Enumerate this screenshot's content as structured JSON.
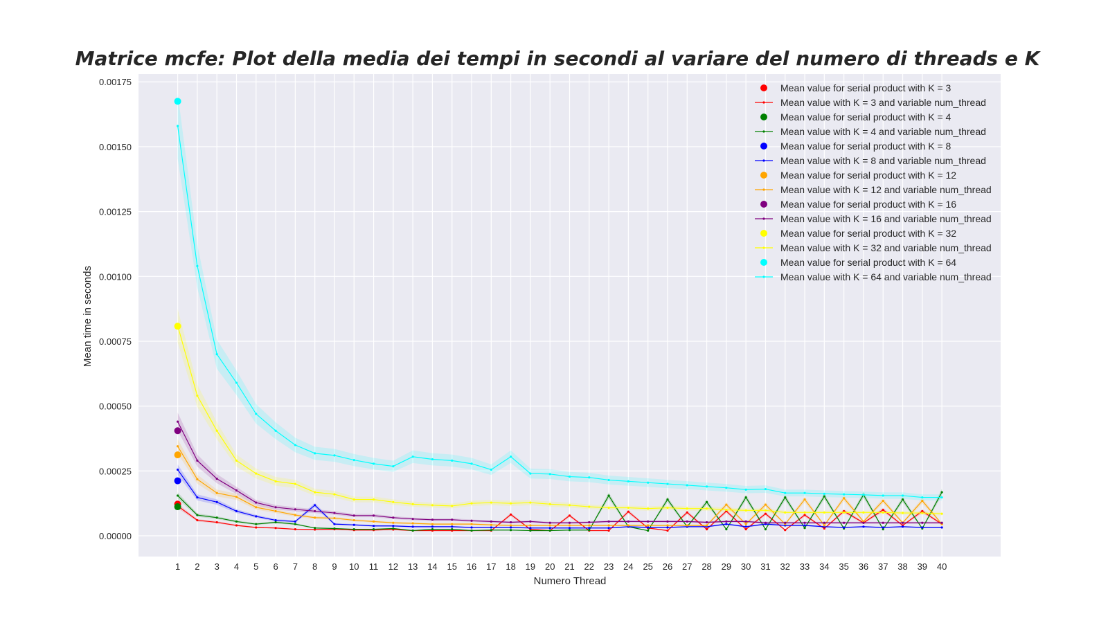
{
  "chart_data": {
    "type": "line",
    "title": "Matrice mcfe: Plot della media dei tempi in secondi al variare del numero di threads e K",
    "xlabel": "Numero Thread",
    "ylabel": "Mean time in seconds",
    "xlim": [
      -1,
      43
    ],
    "ylim": [
      -8e-05,
      0.00178
    ],
    "x": [
      1,
      2,
      3,
      4,
      5,
      6,
      7,
      8,
      9,
      10,
      11,
      12,
      13,
      14,
      15,
      16,
      17,
      18,
      19,
      20,
      21,
      22,
      23,
      24,
      25,
      26,
      27,
      28,
      29,
      30,
      31,
      32,
      33,
      34,
      35,
      36,
      37,
      38,
      39,
      40
    ],
    "x_tick_labels": [
      "1",
      "2",
      "3",
      "4",
      "5",
      "6",
      "7",
      "8",
      "9",
      "10",
      "11",
      "12",
      "13",
      "14",
      "15",
      "16",
      "17",
      "18",
      "19",
      "20",
      "21",
      "22",
      "23",
      "24",
      "25",
      "26",
      "27",
      "28",
      "29",
      "30",
      "31",
      "32",
      "33",
      "34",
      "35",
      "36",
      "37",
      "38",
      "39",
      "40"
    ],
    "y_ticks": [
      0.0,
      0.00025,
      0.0005,
      0.00075,
      0.001,
      0.00125,
      0.0015,
      0.00175
    ],
    "y_tick_labels": [
      "0.00000",
      "0.00025",
      "0.00050",
      "0.00075",
      "0.00100",
      "0.00125",
      "0.00150",
      "0.00175"
    ],
    "grid": true,
    "legend_position": "top-right",
    "background": "#eaeaf2",
    "serial_points": [
      {
        "name": "Mean value for serial product with K = 3",
        "x": 1,
        "y": 0.000122,
        "color": "#ff0000"
      },
      {
        "name": "Mean value for serial product with K = 4",
        "x": 1,
        "y": 0.000112,
        "color": "#008000"
      },
      {
        "name": "Mean value for serial product with K = 8",
        "x": 1,
        "y": 0.000212,
        "color": "#0000ff"
      },
      {
        "name": "Mean value for serial product with K = 12",
        "x": 1,
        "y": 0.000312,
        "color": "#ffa500"
      },
      {
        "name": "Mean value for serial product with K = 16",
        "x": 1,
        "y": 0.000405,
        "color": "#800080"
      },
      {
        "name": "Mean value for serial product with K = 32",
        "x": 1,
        "y": 0.000808,
        "color": "#ffff00"
      },
      {
        "name": "Mean value for serial product with K = 64",
        "x": 1,
        "y": 0.001675,
        "color": "#00ffff"
      }
    ],
    "series": [
      {
        "name": "Mean value with K = 3 and variable num_thread",
        "color": "#ff0000",
        "values": [
          0.000115,
          6e-05,
          5.2e-05,
          4e-05,
          3.2e-05,
          3e-05,
          2.5e-05,
          2.4e-05,
          2.5e-05,
          2.2e-05,
          2.2e-05,
          2.4e-05,
          2e-05,
          2e-05,
          2e-05,
          2e-05,
          2e-05,
          8.2e-05,
          2.5e-05,
          2e-05,
          7.8e-05,
          2e-05,
          2e-05,
          9.3e-05,
          3e-05,
          2e-05,
          9e-05,
          2.5e-05,
          9.5e-05,
          2.5e-05,
          8.5e-05,
          2.2e-05,
          8e-05,
          2.8e-05,
          9.5e-05,
          5e-05,
          0.0001,
          4e-05,
          9.5e-05,
          4.5e-05
        ]
      },
      {
        "name": "Mean value with K = 4 and variable num_thread",
        "color": "#008000",
        "values": [
          0.000155,
          8e-05,
          7e-05,
          5.5e-05,
          4.5e-05,
          5.2e-05,
          4.5e-05,
          3e-05,
          2.8e-05,
          2.5e-05,
          2.5e-05,
          2.8e-05,
          2e-05,
          2.5e-05,
          2.5e-05,
          2e-05,
          2.2e-05,
          2.2e-05,
          2e-05,
          2e-05,
          2.2e-05,
          2.2e-05,
          0.000155,
          3.5e-05,
          2e-05,
          0.00014,
          3.5e-05,
          0.00013,
          2.5e-05,
          0.000148,
          2.5e-05,
          0.000148,
          3e-05,
          0.000152,
          2.8e-05,
          0.000158,
          2.5e-05,
          0.00014,
          2.8e-05,
          0.000168
        ]
      },
      {
        "name": "Mean value with K = 8 and variable num_thread",
        "color": "#0000ff",
        "values": [
          0.000255,
          0.000148,
          0.00013,
          9.5e-05,
          7.5e-05,
          6e-05,
          5.5e-05,
          0.000118,
          4.5e-05,
          4.2e-05,
          3.8e-05,
          3.8e-05,
          3.5e-05,
          3.5e-05,
          3.5e-05,
          3.2e-05,
          3.2e-05,
          3.2e-05,
          3e-05,
          3e-05,
          3e-05,
          3e-05,
          3e-05,
          3.5e-05,
          3.2e-05,
          3.2e-05,
          3.5e-05,
          3.5e-05,
          4.5e-05,
          3.5e-05,
          4.5e-05,
          4e-05,
          4e-05,
          3.5e-05,
          3.2e-05,
          3.5e-05,
          3.2e-05,
          3.5e-05,
          3.2e-05,
          3.2e-05
        ]
      },
      {
        "name": "Mean value with K = 12 and variable num_thread",
        "color": "#ffa500",
        "values": [
          0.000345,
          0.000218,
          0.000165,
          0.00015,
          0.00011,
          9.5e-05,
          8e-05,
          7e-05,
          6.8e-05,
          6e-05,
          5.5e-05,
          5e-05,
          4.8e-05,
          4.5e-05,
          4.5e-05,
          4.5e-05,
          4.2e-05,
          4e-05,
          4e-05,
          4e-05,
          4e-05,
          4e-05,
          4e-05,
          4e-05,
          4e-05,
          4e-05,
          4e-05,
          4e-05,
          0.00012,
          4.5e-05,
          0.00012,
          4.5e-05,
          0.00014,
          4e-05,
          0.000145,
          5.5e-05,
          0.000135,
          5e-05,
          0.000135,
          4.5e-05
        ]
      },
      {
        "name": "Mean value with K = 16 and variable num_thread",
        "color": "#800080",
        "values": [
          0.00044,
          0.00029,
          0.00022,
          0.000175,
          0.000128,
          0.00011,
          0.000102,
          9.5e-05,
          8.8e-05,
          7.8e-05,
          7.8e-05,
          7e-05,
          6.5e-05,
          6.2e-05,
          6.2e-05,
          5.8e-05,
          5.5e-05,
          5.2e-05,
          5.5e-05,
          5e-05,
          5e-05,
          5.2e-05,
          5.5e-05,
          5.5e-05,
          5.5e-05,
          5.5e-05,
          5.5e-05,
          5.2e-05,
          5.5e-05,
          5.5e-05,
          5e-05,
          5e-05,
          5e-05,
          5e-05,
          5e-05,
          5e-05,
          5e-05,
          5e-05,
          5e-05,
          5e-05
        ]
      },
      {
        "name": "Mean value with K = 32 and variable num_thread",
        "color": "#ffff00",
        "values": [
          0.00081,
          0.00054,
          0.000405,
          0.00029,
          0.00024,
          0.00021,
          0.0002,
          0.000168,
          0.00016,
          0.00014,
          0.00014,
          0.00013,
          0.000122,
          0.000118,
          0.000115,
          0.000125,
          0.000128,
          0.000125,
          0.000128,
          0.000122,
          0.000118,
          0.000112,
          0.000108,
          0.000108,
          0.000105,
          0.000108,
          0.000105,
          0.000105,
          0.0001,
          9.8e-05,
          9.8e-05,
          9e-05,
          9e-05,
          9e-05,
          9e-05,
          9e-05,
          9e-05,
          8.8e-05,
          8.8e-05,
          8.5e-05
        ]
      },
      {
        "name": "Mean value with K = 64 and variable num_thread",
        "color": "#00ffff",
        "values": [
          0.00158,
          0.00104,
          0.0007,
          0.00059,
          0.00047,
          0.000405,
          0.00035,
          0.000318,
          0.00031,
          0.000292,
          0.000278,
          0.000268,
          0.000305,
          0.000295,
          0.00029,
          0.000278,
          0.000255,
          0.000305,
          0.00024,
          0.000238,
          0.000228,
          0.000225,
          0.000215,
          0.00021,
          0.000205,
          0.0002,
          0.000195,
          0.00019,
          0.000185,
          0.000178,
          0.00018,
          0.000165,
          0.000165,
          0.000162,
          0.00016,
          0.000158,
          0.000155,
          0.000155,
          0.000148,
          0.000148
        ]
      }
    ]
  }
}
